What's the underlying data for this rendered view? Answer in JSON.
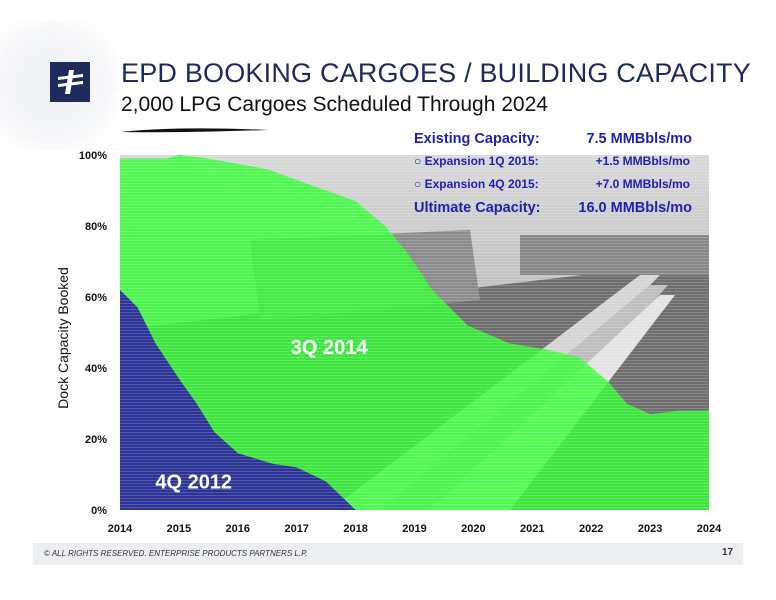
{
  "header": {
    "title": "EPD BOOKING CARGOES / BUILDING CAPACITY",
    "subtitle": "2,000 LPG Cargoes Scheduled Through 2024"
  },
  "capacity_box": {
    "rows": [
      {
        "label": "Existing Capacity:",
        "value": "7.5 MMBbls/mo",
        "style": "big"
      },
      {
        "label": "○ Expansion 1Q 2015:",
        "value": "+1.5 MMBbls/mo",
        "style": "small"
      },
      {
        "label": "○ Expansion 4Q 2015:",
        "value": "+7.0 MMBbls/mo",
        "style": "small"
      },
      {
        "label": "Ultimate Capacity:",
        "value": "16.0 MMBbls/mo",
        "style": "big"
      }
    ],
    "color": "#1f1fb4"
  },
  "chart_data": {
    "type": "area",
    "ylabel": "Dock Capacity Booked",
    "xlabel": "",
    "xlim": [
      2014,
      2024
    ],
    "ylim": [
      0,
      100
    ],
    "x_ticks": [
      "2014",
      "2015",
      "2016",
      "2017",
      "2018",
      "2019",
      "2020",
      "2021",
      "2022",
      "2023",
      "2024"
    ],
    "y_ticks": [
      "0%",
      "20%",
      "40%",
      "60%",
      "80%",
      "100%"
    ],
    "grid": false,
    "series": [
      {
        "name": "3Q 2014",
        "color": "#33ff33",
        "points": [
          [
            2014,
            99
          ],
          [
            2014.8,
            99
          ],
          [
            2015,
            100
          ],
          [
            2015.5,
            99
          ],
          [
            2016.5,
            96
          ],
          [
            2017.5,
            90
          ],
          [
            2018,
            87
          ],
          [
            2018.5,
            80
          ],
          [
            2018.9,
            72
          ],
          [
            2019.3,
            62
          ],
          [
            2019.9,
            52
          ],
          [
            2020.6,
            47
          ],
          [
            2021.3,
            45
          ],
          [
            2021.8,
            43
          ],
          [
            2022.3,
            36
          ],
          [
            2022.6,
            30
          ],
          [
            2023,
            27
          ],
          [
            2023.5,
            28
          ],
          [
            2024,
            28
          ],
          [
            2024,
            0
          ],
          [
            2014,
            0
          ]
        ]
      },
      {
        "name": "4Q 2012",
        "color": "#2a2a9a",
        "points": [
          [
            2014,
            62
          ],
          [
            2014.3,
            57
          ],
          [
            2014.6,
            47
          ],
          [
            2015,
            37
          ],
          [
            2015.3,
            30
          ],
          [
            2015.6,
            22
          ],
          [
            2016,
            16
          ],
          [
            2016.6,
            13
          ],
          [
            2017,
            12
          ],
          [
            2017.5,
            8
          ],
          [
            2018,
            0
          ],
          [
            2014,
            0
          ]
        ]
      }
    ],
    "annotations": [
      {
        "text": "3Q 2014",
        "x": 2016.9,
        "y": 44
      },
      {
        "text": "4Q 2012",
        "x": 2014.6,
        "y": 6
      }
    ]
  },
  "footer": {
    "copyright": "© ALL RIGHTS RESERVED. ENTERPRISE PRODUCTS PARTNERS L.P.",
    "page_number": "17"
  }
}
